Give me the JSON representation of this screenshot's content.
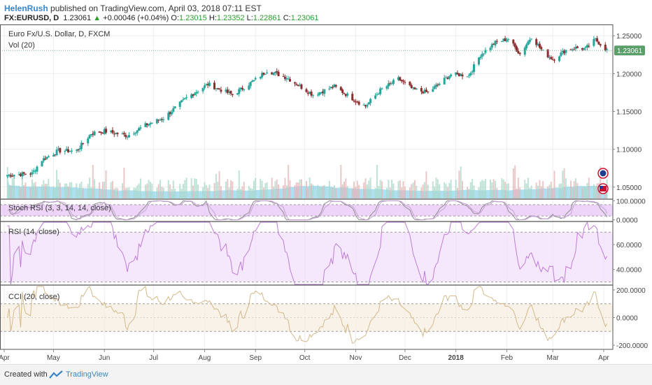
{
  "header": {
    "user": "HelenRush",
    "published_text": " published on TradingView.com, April 03, 2018 07:11 EST",
    "symbol": "FX:EURUSD, D",
    "last": "1.23061",
    "change": "+0.00046 (+0.04%)",
    "o_label": "O:",
    "o": "1.23015",
    "h_label": "H:",
    "h": "1.23352",
    "l_label": "L:",
    "l": "1.22861",
    "c_label": "C:",
    "c": "1.23061"
  },
  "footer": {
    "created_with": "Created with",
    "brand": "TradingView"
  },
  "colors": {
    "up": "#26a69a",
    "down": "#8b2e2e",
    "volume": "#6ec6e8",
    "stoch_band": "#e3b8f5",
    "rsi_band": "#efd9fb",
    "cci_band": "#f3ead8",
    "last_price_tag": "#5a9e6a"
  },
  "chart_data": [
    {
      "type": "candlestick",
      "title": "Euro Fx/U.S. Dollar, D, FXCM",
      "subtitle": "Vol (20)",
      "ylim": [
        1.035,
        1.265
      ],
      "y_ticks": [
        "1.25000",
        "1.20000",
        "1.15000",
        "1.10000",
        "1.05000"
      ],
      "y_tick_values": [
        1.25,
        1.2,
        1.15,
        1.1,
        1.05
      ],
      "last_price": "1.23061",
      "x_tick_labels": [
        "Apr",
        "May",
        "Jun",
        "Jul",
        "Aug",
        "Sep",
        "Oct",
        "Nov",
        "Dec",
        "2018",
        "Feb",
        "Mar",
        "Apr"
      ],
      "x_range": [
        "2017-04-01",
        "2018-04-04"
      ],
      "x_tick_dates": [
        "2017-04-01",
        "2017-05-01",
        "2017-06-01",
        "2017-07-01",
        "2017-08-01",
        "2017-09-01",
        "2017-10-01",
        "2017-11-01",
        "2017-12-01",
        "2018-01-01",
        "2018-02-01",
        "2018-03-01",
        "2018-04-01"
      ],
      "close_anchors": [
        [
          "2017-04-03",
          1.066
        ],
        [
          "2017-04-18",
          1.068
        ],
        [
          "2017-04-24",
          1.086
        ],
        [
          "2017-05-04",
          1.098
        ],
        [
          "2017-05-15",
          1.098
        ],
        [
          "2017-05-24",
          1.121
        ],
        [
          "2017-06-01",
          1.124
        ],
        [
          "2017-06-15",
          1.118
        ],
        [
          "2017-06-27",
          1.133
        ],
        [
          "2017-07-07",
          1.141
        ],
        [
          "2017-07-21",
          1.168
        ],
        [
          "2017-08-03",
          1.186
        ],
        [
          "2017-08-18",
          1.172
        ],
        [
          "2017-09-01",
          1.192
        ],
        [
          "2017-09-08",
          1.204
        ],
        [
          "2017-09-20",
          1.195
        ],
        [
          "2017-10-06",
          1.172
        ],
        [
          "2017-10-19",
          1.183
        ],
        [
          "2017-11-02",
          1.163
        ],
        [
          "2017-11-07",
          1.157
        ],
        [
          "2017-11-16",
          1.178
        ],
        [
          "2017-11-27",
          1.193
        ],
        [
          "2017-12-06",
          1.179
        ],
        [
          "2017-12-15",
          1.175
        ],
        [
          "2017-12-29",
          1.199
        ],
        [
          "2018-01-09",
          1.198
        ],
        [
          "2018-01-16",
          1.225
        ],
        [
          "2018-01-25",
          1.241
        ],
        [
          "2018-02-02",
          1.246
        ],
        [
          "2018-02-09",
          1.226
        ],
        [
          "2018-02-16",
          1.249
        ],
        [
          "2018-02-23",
          1.229
        ],
        [
          "2018-03-01",
          1.219
        ],
        [
          "2018-03-09",
          1.231
        ],
        [
          "2018-03-15",
          1.234
        ],
        [
          "2018-03-21",
          1.233
        ],
        [
          "2018-03-27",
          1.245
        ],
        [
          "2018-04-03",
          1.231
        ]
      ],
      "volume_ma_note": ""
    },
    {
      "type": "line",
      "title": "Stoch RSI (3, 3, 14, 14, close)",
      "ylim": [
        -5,
        105
      ],
      "y_ticks": [
        "100.0000",
        "0.0000"
      ],
      "y_tick_values": [
        100,
        0
      ],
      "band": [
        20,
        80
      ]
    },
    {
      "type": "line",
      "title": "RSI (14, close)",
      "ylim": [
        28,
        78
      ],
      "y_ticks": [
        "60.0000",
        "40.0000"
      ],
      "y_tick_values": [
        60,
        40
      ],
      "band": [
        30,
        70
      ]
    },
    {
      "type": "line",
      "title": "CCI (20, close)",
      "ylim": [
        -230,
        230
      ],
      "y_ticks": [
        "200.0000",
        "0.0000",
        "-200.0000"
      ],
      "y_tick_values": [
        200,
        0,
        -200
      ],
      "band": [
        -100,
        100
      ]
    }
  ]
}
